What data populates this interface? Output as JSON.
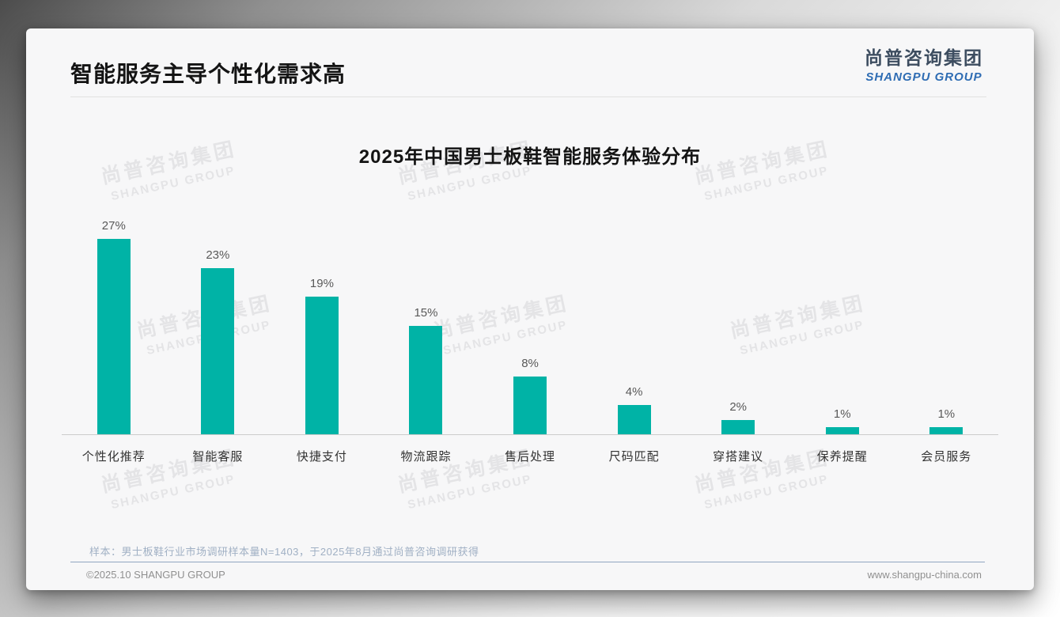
{
  "page": {
    "title": "智能服务主导个性化需求高",
    "logo": {
      "cn": "尚普咨询集团",
      "en": "SHANGPU GROUP"
    },
    "watermark": {
      "cn": "尚普咨询集团",
      "en": "SHANGPU GROUP"
    },
    "note": "样本：男士板鞋行业市场调研样本量N=1403，于2025年8月通过尚普咨询调研获得",
    "footer": {
      "left": "©2025.10 SHANGPU GROUP",
      "right": "www.shangpu-china.com"
    }
  },
  "chart_data": {
    "type": "bar",
    "title": "2025年中国男士板鞋智能服务体验分布",
    "categories": [
      "个性化推荐",
      "智能客服",
      "快捷支付",
      "物流跟踪",
      "售后处理",
      "尺码匹配",
      "穿搭建议",
      "保养提醒",
      "会员服务"
    ],
    "values": [
      27,
      23,
      19,
      15,
      8,
      4,
      2,
      1,
      1
    ],
    "value_labels": [
      "27%",
      "23%",
      "19%",
      "15%",
      "8%",
      "4%",
      "2%",
      "1%",
      "1%"
    ],
    "bar_color": "#00b3a6",
    "xlabel": "",
    "ylabel": "",
    "ylim": [
      0,
      30
    ],
    "grid": false,
    "legend": "none"
  }
}
